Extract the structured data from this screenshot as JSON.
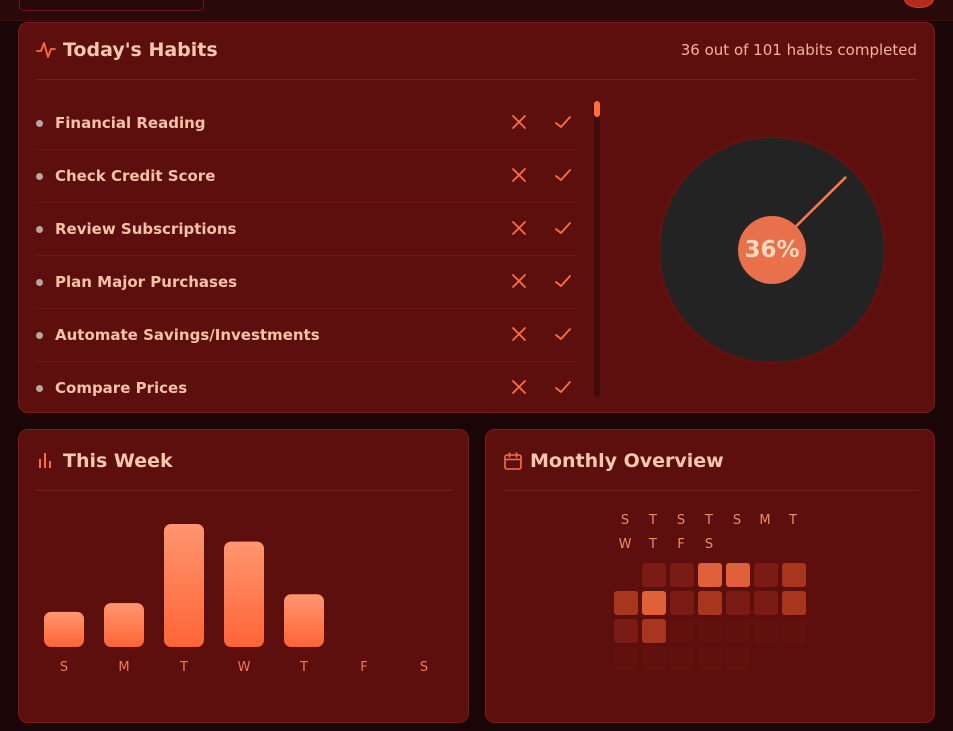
{
  "colors": {
    "accent": "#ff6e3f",
    "card": "#5c0f0d",
    "pie_bg": "#232323",
    "pie_fill": "#ff7a4a"
  },
  "habits_card": {
    "title": "Today's Habits",
    "title_icon": "activity-icon",
    "summary": "36 out of 101 habits completed",
    "habits": [
      {
        "name": "Financial Reading"
      },
      {
        "name": "Check Credit Score"
      },
      {
        "name": "Review Subscriptions"
      },
      {
        "name": "Plan Major Purchases"
      },
      {
        "name": "Automate Savings/Investments"
      },
      {
        "name": "Compare Prices"
      }
    ],
    "progress_percent": 36,
    "progress_label": "36%"
  },
  "week_card": {
    "title": "This Week",
    "title_icon": "bar-chart-icon"
  },
  "chart_data": {
    "type": "bar",
    "categories": [
      "S",
      "M",
      "T",
      "W",
      "T",
      "F",
      "S"
    ],
    "values": [
      4,
      5,
      14,
      12,
      6,
      0,
      0
    ],
    "title": "",
    "xlabel": "",
    "ylabel": "",
    "ylim": [
      0,
      14
    ],
    "grid": false
  },
  "monthly_card": {
    "title": "Monthly Overview",
    "title_icon": "calendar-icon",
    "day_letters_row1": [
      "S",
      "T",
      "S",
      "T",
      "S",
      "M",
      "T"
    ],
    "day_letters_row2": [
      "W",
      "T",
      "F",
      "S"
    ],
    "cells": [
      null,
      1,
      1,
      3,
      3,
      1,
      2,
      2,
      3,
      1,
      2,
      1,
      1,
      2,
      1,
      2,
      0,
      0,
      0,
      0,
      0,
      0,
      0,
      0,
      0,
      0
    ]
  }
}
